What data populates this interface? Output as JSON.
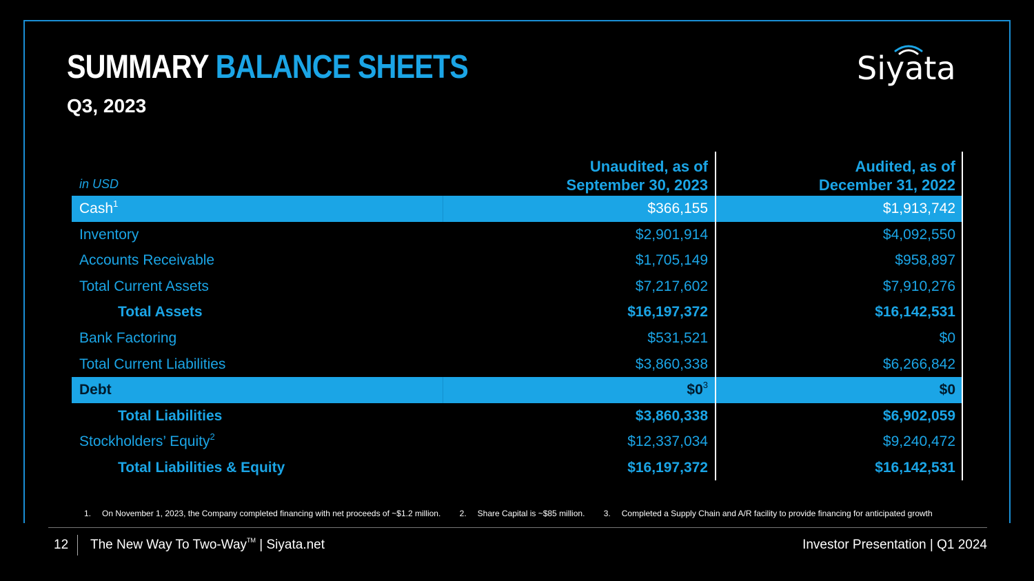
{
  "title": {
    "white": "SUMMARY",
    "blue": "BALANCE SHEETS"
  },
  "subtitle": "Q3, 2023",
  "logo": {
    "text": "Siyata"
  },
  "colors": {
    "accent": "#1ba5e6",
    "background": "#000000",
    "frame": "#1a8fd6"
  },
  "table": {
    "unit_label": "in USD",
    "col1_header": [
      "Unaudited, as of",
      "September 30, 2023"
    ],
    "col2_header": [
      "Audited, as of",
      "December 31, 2022"
    ],
    "rows": [
      {
        "label": "Cash",
        "sup": "1",
        "v1": "$366,155",
        "v2": "$1,913,742"
      },
      {
        "label": "Inventory",
        "v1": "$2,901,914",
        "v2": "$4,092,550"
      },
      {
        "label": "Accounts Receivable",
        "v1": "$1,705,149",
        "v2": "$958,897"
      },
      {
        "label": "Total Current Assets",
        "v1": "$7,217,602",
        "v2": "$7,910,276"
      },
      {
        "label": "Total Assets",
        "v1": "$16,197,372",
        "v2": "$16,142,531"
      },
      {
        "label": "Bank Factoring",
        "v1": "$531,521",
        "v2": "$0"
      },
      {
        "label": "Total Current Liabilities",
        "v1": "$3,860,338",
        "v2": "$6,266,842"
      },
      {
        "label": "Debt",
        "v1": "$0",
        "v1_sup": "3",
        "v2": "$0"
      },
      {
        "label": "Total Liabilities",
        "v1": "$3,860,338",
        "v2": "$6,902,059"
      },
      {
        "label": "Stockholders’ Equity",
        "sup": "2",
        "v1": "$12,337,034",
        "v2": "$9,240,472"
      },
      {
        "label": "Total Liabilities & Equity",
        "v1": "$16,197,372",
        "v2": "$16,142,531"
      }
    ]
  },
  "footnotes": [
    {
      "num": "1.",
      "text": "On November 1, 2023, the Company completed financing with net proceeds of ~$1.2 million."
    },
    {
      "num": "2.",
      "text": "Share Capital is ~$85 million."
    },
    {
      "num": "3.",
      "text": "Completed a Supply Chain and A/R facility to provide financing for anticipated growth"
    }
  ],
  "footer": {
    "page": "12",
    "tagline": "The New Way To Two-Way",
    "tm": "TM",
    "site": "| Siyata.net",
    "right": "Investor Presentation  |  Q1 2024"
  }
}
